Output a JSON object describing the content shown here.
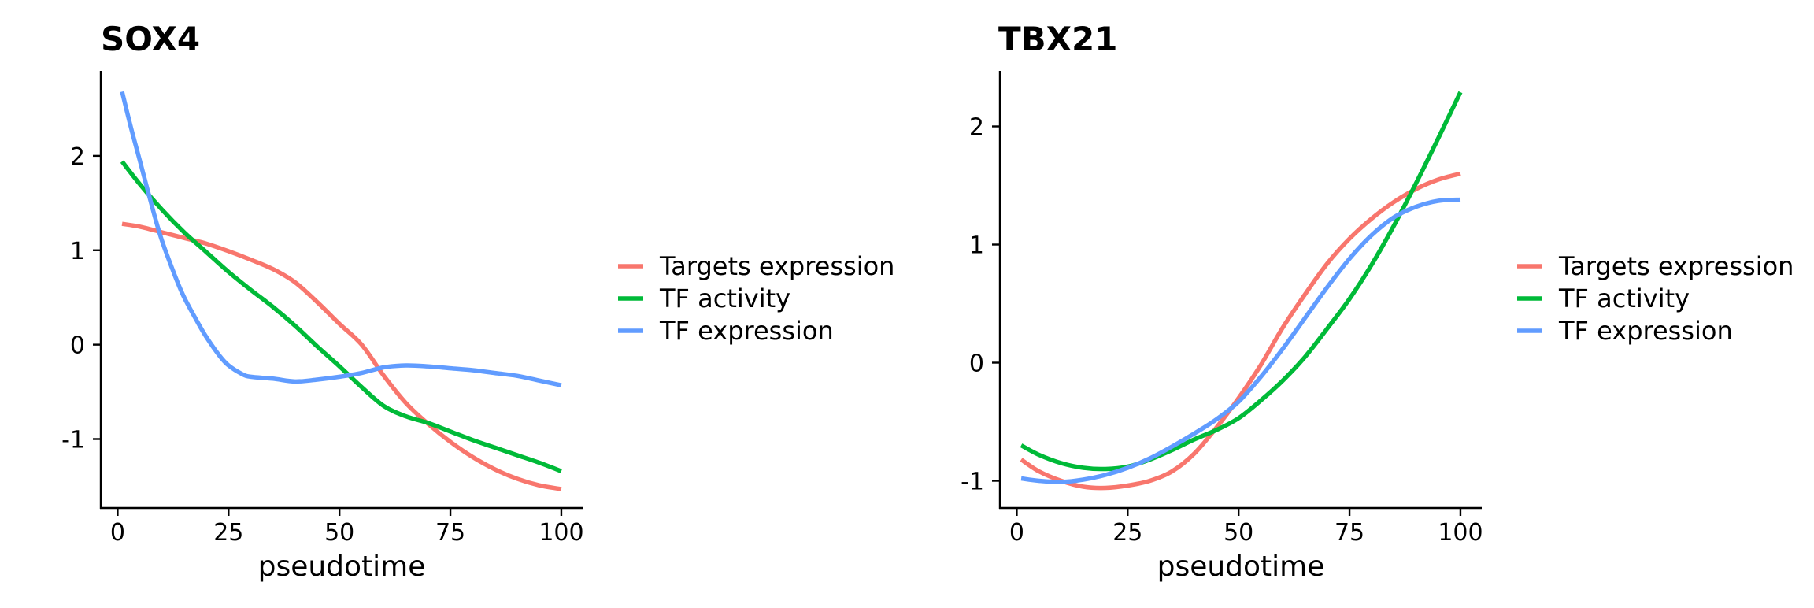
{
  "chart_data": [
    {
      "type": "line",
      "title": "SOX4",
      "xlabel": "pseudotime",
      "ylabel": "",
      "xlim": [
        -3.8,
        104.8
      ],
      "ylim": [
        -1.73,
        2.9
      ],
      "xticks": [
        0,
        25,
        50,
        75,
        100
      ],
      "xtick_labels": [
        "0",
        "25",
        "50",
        "75",
        "100"
      ],
      "yticks": [
        -1,
        0,
        1,
        2
      ],
      "ytick_labels": [
        "-1",
        "0",
        "1",
        "2"
      ],
      "grid": false,
      "legend_position": "right",
      "series": [
        {
          "name": "Targets expression",
          "color": "#F8766D",
          "x": [
            1,
            5,
            10,
            15,
            20,
            25,
            30,
            35,
            40,
            45,
            50,
            55,
            60,
            65,
            70,
            75,
            80,
            85,
            90,
            95,
            100
          ],
          "y": [
            1.28,
            1.25,
            1.19,
            1.13,
            1.07,
            0.99,
            0.9,
            0.8,
            0.66,
            0.45,
            0.22,
            0.0,
            -0.33,
            -0.62,
            -0.84,
            -1.03,
            -1.19,
            -1.32,
            -1.42,
            -1.49,
            -1.53
          ]
        },
        {
          "name": "TF activity",
          "color": "#00BA38",
          "x": [
            1,
            5,
            10,
            15,
            20,
            25,
            30,
            35,
            40,
            45,
            50,
            55,
            60,
            65,
            70,
            75,
            80,
            85,
            90,
            95,
            100
          ],
          "y": [
            1.94,
            1.7,
            1.43,
            1.19,
            0.98,
            0.77,
            0.58,
            0.4,
            0.2,
            -0.02,
            -0.23,
            -0.45,
            -0.65,
            -0.76,
            -0.83,
            -0.92,
            -1.01,
            -1.09,
            -1.17,
            -1.25,
            -1.34
          ]
        },
        {
          "name": "TF expression",
          "color": "#619CFF",
          "x": [
            1,
            3,
            5,
            8,
            10,
            13,
            15,
            18,
            20,
            23,
            25,
            28,
            30,
            35,
            40,
            45,
            50,
            55,
            60,
            65,
            70,
            75,
            80,
            85,
            90,
            95,
            100
          ],
          "y": [
            2.68,
            2.3,
            1.95,
            1.42,
            1.1,
            0.72,
            0.5,
            0.24,
            0.08,
            -0.12,
            -0.22,
            -0.31,
            -0.34,
            -0.36,
            -0.39,
            -0.37,
            -0.34,
            -0.3,
            -0.24,
            -0.22,
            -0.23,
            -0.25,
            -0.27,
            -0.3,
            -0.33,
            -0.38,
            -0.43
          ]
        }
      ]
    },
    {
      "type": "line",
      "title": "TBX21",
      "xlabel": "pseudotime",
      "ylabel": "",
      "xlim": [
        -3.8,
        104.8
      ],
      "ylim": [
        -1.23,
        2.47
      ],
      "xticks": [
        0,
        25,
        50,
        75,
        100
      ],
      "xtick_labels": [
        "0",
        "25",
        "50",
        "75",
        "100"
      ],
      "yticks": [
        -1,
        0,
        1,
        2
      ],
      "ytick_labels": [
        "-1",
        "0",
        "1",
        "2"
      ],
      "grid": false,
      "legend_position": "right",
      "series": [
        {
          "name": "Targets expression",
          "color": "#F8766D",
          "x": [
            1,
            5,
            10,
            15,
            20,
            25,
            30,
            35,
            40,
            45,
            50,
            55,
            60,
            65,
            70,
            75,
            80,
            85,
            90,
            95,
            100
          ],
          "y": [
            -0.82,
            -0.92,
            -1.0,
            -1.05,
            -1.06,
            -1.04,
            -1.0,
            -0.92,
            -0.77,
            -0.55,
            -0.3,
            -0.02,
            0.3,
            0.58,
            0.84,
            1.05,
            1.22,
            1.36,
            1.47,
            1.55,
            1.6
          ]
        },
        {
          "name": "TF activity",
          "color": "#00BA38",
          "x": [
            1,
            5,
            10,
            15,
            20,
            25,
            30,
            35,
            40,
            45,
            50,
            55,
            60,
            65,
            70,
            75,
            80,
            85,
            90,
            95,
            100
          ],
          "y": [
            -0.7,
            -0.78,
            -0.85,
            -0.89,
            -0.9,
            -0.88,
            -0.82,
            -0.74,
            -0.65,
            -0.57,
            -0.47,
            -0.32,
            -0.15,
            0.05,
            0.29,
            0.54,
            0.83,
            1.16,
            1.52,
            1.9,
            2.29
          ]
        },
        {
          "name": "TF expression",
          "color": "#619CFF",
          "x": [
            1,
            5,
            10,
            15,
            20,
            25,
            30,
            35,
            40,
            45,
            50,
            55,
            60,
            65,
            70,
            75,
            80,
            85,
            90,
            95,
            100
          ],
          "y": [
            -0.98,
            -1.0,
            -1.01,
            -0.99,
            -0.95,
            -0.89,
            -0.81,
            -0.71,
            -0.6,
            -0.48,
            -0.33,
            -0.12,
            0.12,
            0.38,
            0.64,
            0.88,
            1.08,
            1.23,
            1.32,
            1.37,
            1.38
          ]
        }
      ]
    }
  ]
}
